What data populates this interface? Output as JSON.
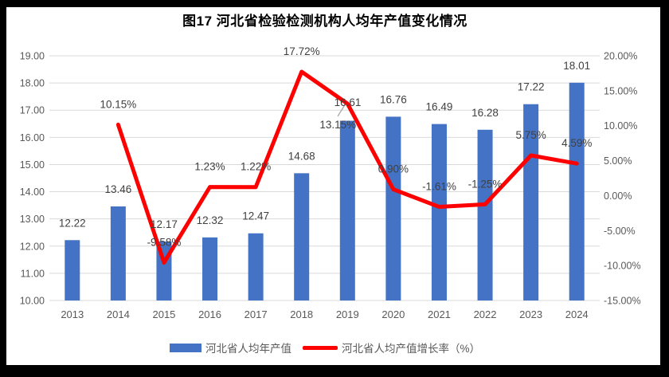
{
  "title": "图17 河北省检验检测机构人均年产值变化情况",
  "chart_data": {
    "type": "bar+line",
    "categories": [
      "2013",
      "2014",
      "2015",
      "2016",
      "2017",
      "2018",
      "2019",
      "2020",
      "2021",
      "2022",
      "2023",
      "2024"
    ],
    "series": [
      {
        "name": "河北省人均年产值",
        "type": "bar",
        "axis": "left",
        "color": "#4472C4",
        "values": [
          12.22,
          13.46,
          12.17,
          12.32,
          12.47,
          14.68,
          16.61,
          16.76,
          16.49,
          16.28,
          17.22,
          18.01
        ],
        "labels": [
          "12.22",
          "13.46",
          "12.17",
          "12.32",
          "12.47",
          "14.68",
          "16.61",
          "16.76",
          "16.49",
          "16.28",
          "17.22",
          "18.01"
        ]
      },
      {
        "name": "河北省人均产值增长率（%）",
        "type": "line",
        "axis": "right",
        "color": "#FF0000",
        "values": [
          null,
          10.15,
          -9.58,
          1.23,
          1.22,
          17.72,
          13.15,
          0.9,
          -1.61,
          -1.25,
          5.75,
          4.59
        ],
        "labels": [
          null,
          "10.15%",
          "-9.58%",
          "1.23%",
          "1.22%",
          "17.72%",
          "13.15%",
          "0.90%",
          "-1.61%",
          "-1.25%",
          "5.75%",
          "4.59%"
        ]
      }
    ],
    "left_axis": {
      "min": 10,
      "max": 19,
      "step": 1,
      "ticks": [
        "10.00",
        "11.00",
        "12.00",
        "13.00",
        "14.00",
        "15.00",
        "16.00",
        "17.00",
        "18.00",
        "19.00"
      ]
    },
    "right_axis": {
      "min": -15,
      "max": 20,
      "step": 5,
      "ticks": [
        "-15.00%",
        "-10.00%",
        "-5.00%",
        "0.00%",
        "5.00%",
        "10.00%",
        "15.00%",
        "20.00%"
      ]
    },
    "grid": true,
    "legend_position": "bottom"
  },
  "colors": {
    "bar": "#4472C4",
    "line": "#FF0000",
    "grid": "#D9D9D9",
    "tick_text": "#595959",
    "label_text": "#404040",
    "leader": "#A6A6A6",
    "frame": "#000000",
    "background": "#FFFFFF"
  }
}
